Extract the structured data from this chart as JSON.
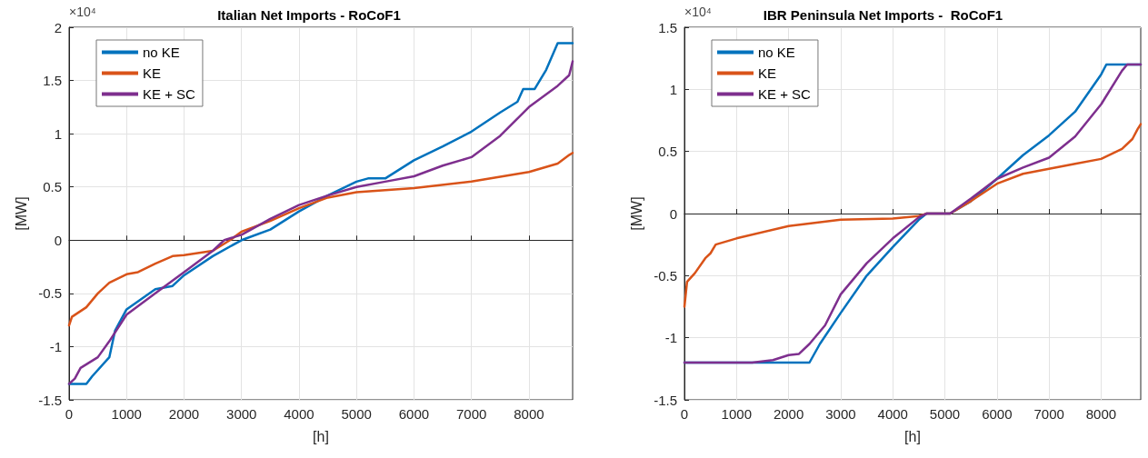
{
  "chart_data": [
    {
      "type": "line",
      "title": "Italian Net Imports - RoCoF1",
      "xlabel": "[h]",
      "ylabel": "[MW]",
      "annotations": [
        "×10⁴"
      ],
      "xlim": [
        0,
        8760
      ],
      "xticks": [
        0,
        1000,
        2000,
        3000,
        4000,
        5000,
        6000,
        7000,
        8000
      ],
      "ylim": [
        -1.5,
        2
      ],
      "yticks": [
        -1.5,
        -1,
        -0.5,
        0,
        0.5,
        1,
        1.5,
        2
      ],
      "grid": true,
      "legend": "top left",
      "marker": "none",
      "line_style": "solid",
      "series": [
        {
          "name": "no KE",
          "color": "#0072bd",
          "x": [
            0,
            300,
            400,
            700,
            800,
            1000,
            1500,
            1800,
            2000,
            2500,
            3000,
            3500,
            4000,
            4500,
            5000,
            5200,
            5500,
            6000,
            6500,
            7000,
            7500,
            7800,
            7900,
            8100,
            8300,
            8500,
            8760
          ],
          "values": [
            -1.35,
            -1.35,
            -1.28,
            -1.1,
            -0.85,
            -0.65,
            -0.46,
            -0.43,
            -0.33,
            -0.15,
            0,
            0.1,
            0.27,
            0.42,
            0.55,
            0.58,
            0.58,
            0.75,
            0.88,
            1.02,
            1.2,
            1.3,
            1.42,
            1.42,
            1.6,
            1.85,
            1.85
          ]
        },
        {
          "name": "KE",
          "color": "#d95319",
          "x": [
            0,
            50,
            300,
            500,
            700,
            1000,
            1200,
            1500,
            1800,
            2000,
            2500,
            2800,
            3000,
            3500,
            4000,
            4500,
            5000,
            6000,
            7000,
            8000,
            8500,
            8700,
            8760
          ],
          "values": [
            -0.8,
            -0.72,
            -0.63,
            -0.5,
            -0.4,
            -0.32,
            -0.3,
            -0.22,
            -0.15,
            -0.14,
            -0.1,
            0,
            0.08,
            0.18,
            0.3,
            0.4,
            0.45,
            0.49,
            0.55,
            0.64,
            0.72,
            0.8,
            0.82
          ]
        },
        {
          "name": "KE + SC",
          "color": "#7e2f8e",
          "x": [
            0,
            100,
            200,
            500,
            700,
            1000,
            1500,
            2000,
            2500,
            2700,
            3000,
            3500,
            4000,
            4500,
            5000,
            5500,
            6000,
            6500,
            7000,
            7500,
            8000,
            8500,
            8700,
            8760
          ],
          "values": [
            -1.35,
            -1.3,
            -1.2,
            -1.1,
            -0.95,
            -0.7,
            -0.5,
            -0.3,
            -0.1,
            0,
            0.05,
            0.2,
            0.33,
            0.42,
            0.5,
            0.55,
            0.6,
            0.7,
            0.78,
            0.98,
            1.25,
            1.45,
            1.55,
            1.68
          ]
        }
      ]
    },
    {
      "type": "line",
      "title": "IBR Peninsula Net Imports -  RoCoF1",
      "xlabel": "[h]",
      "ylabel": "[MW]",
      "annotations": [
        "×10⁴"
      ],
      "xlim": [
        0,
        8760
      ],
      "xticks": [
        0,
        1000,
        2000,
        3000,
        4000,
        5000,
        6000,
        7000,
        8000
      ],
      "ylim": [
        -1.5,
        1.5
      ],
      "yticks": [
        -1.5,
        -1,
        -0.5,
        0,
        0.5,
        1,
        1.5
      ],
      "grid": true,
      "legend": "top left",
      "marker": "none",
      "line_style": "solid",
      "series": [
        {
          "name": "no KE",
          "color": "#0072bd",
          "x": [
            0,
            2400,
            2600,
            3000,
            3500,
            4000,
            4500,
            4650,
            5100,
            5500,
            6000,
            6500,
            7000,
            7500,
            8000,
            8100,
            8760
          ],
          "values": [
            -1.2,
            -1.2,
            -1.05,
            -0.8,
            -0.5,
            -0.27,
            -0.05,
            0,
            0,
            0.1,
            0.28,
            0.47,
            0.63,
            0.82,
            1.12,
            1.2,
            1.2
          ]
        },
        {
          "name": "KE",
          "color": "#d95319",
          "x": [
            0,
            50,
            200,
            400,
            500,
            600,
            1000,
            2000,
            3000,
            4000,
            4500,
            4650,
            5100,
            5500,
            6000,
            6500,
            7000,
            7500,
            8000,
            8400,
            8600,
            8700,
            8760
          ],
          "values": [
            -0.75,
            -0.55,
            -0.48,
            -0.36,
            -0.32,
            -0.25,
            -0.2,
            -0.1,
            -0.05,
            -0.04,
            -0.02,
            0,
            0,
            0.1,
            0.24,
            0.32,
            0.36,
            0.4,
            0.44,
            0.52,
            0.6,
            0.68,
            0.72
          ]
        },
        {
          "name": "KE + SC",
          "color": "#7e2f8e",
          "x": [
            0,
            1300,
            1700,
            2000,
            2200,
            2400,
            2700,
            3000,
            3500,
            4000,
            4500,
            4650,
            5100,
            5500,
            6000,
            6500,
            7000,
            7500,
            8000,
            8400,
            8500,
            8760
          ],
          "values": [
            -1.2,
            -1.2,
            -1.18,
            -1.14,
            -1.13,
            -1.05,
            -0.9,
            -0.65,
            -0.4,
            -0.2,
            -0.03,
            0,
            0,
            0.12,
            0.28,
            0.37,
            0.45,
            0.62,
            0.88,
            1.15,
            1.2,
            1.2
          ]
        }
      ]
    }
  ]
}
